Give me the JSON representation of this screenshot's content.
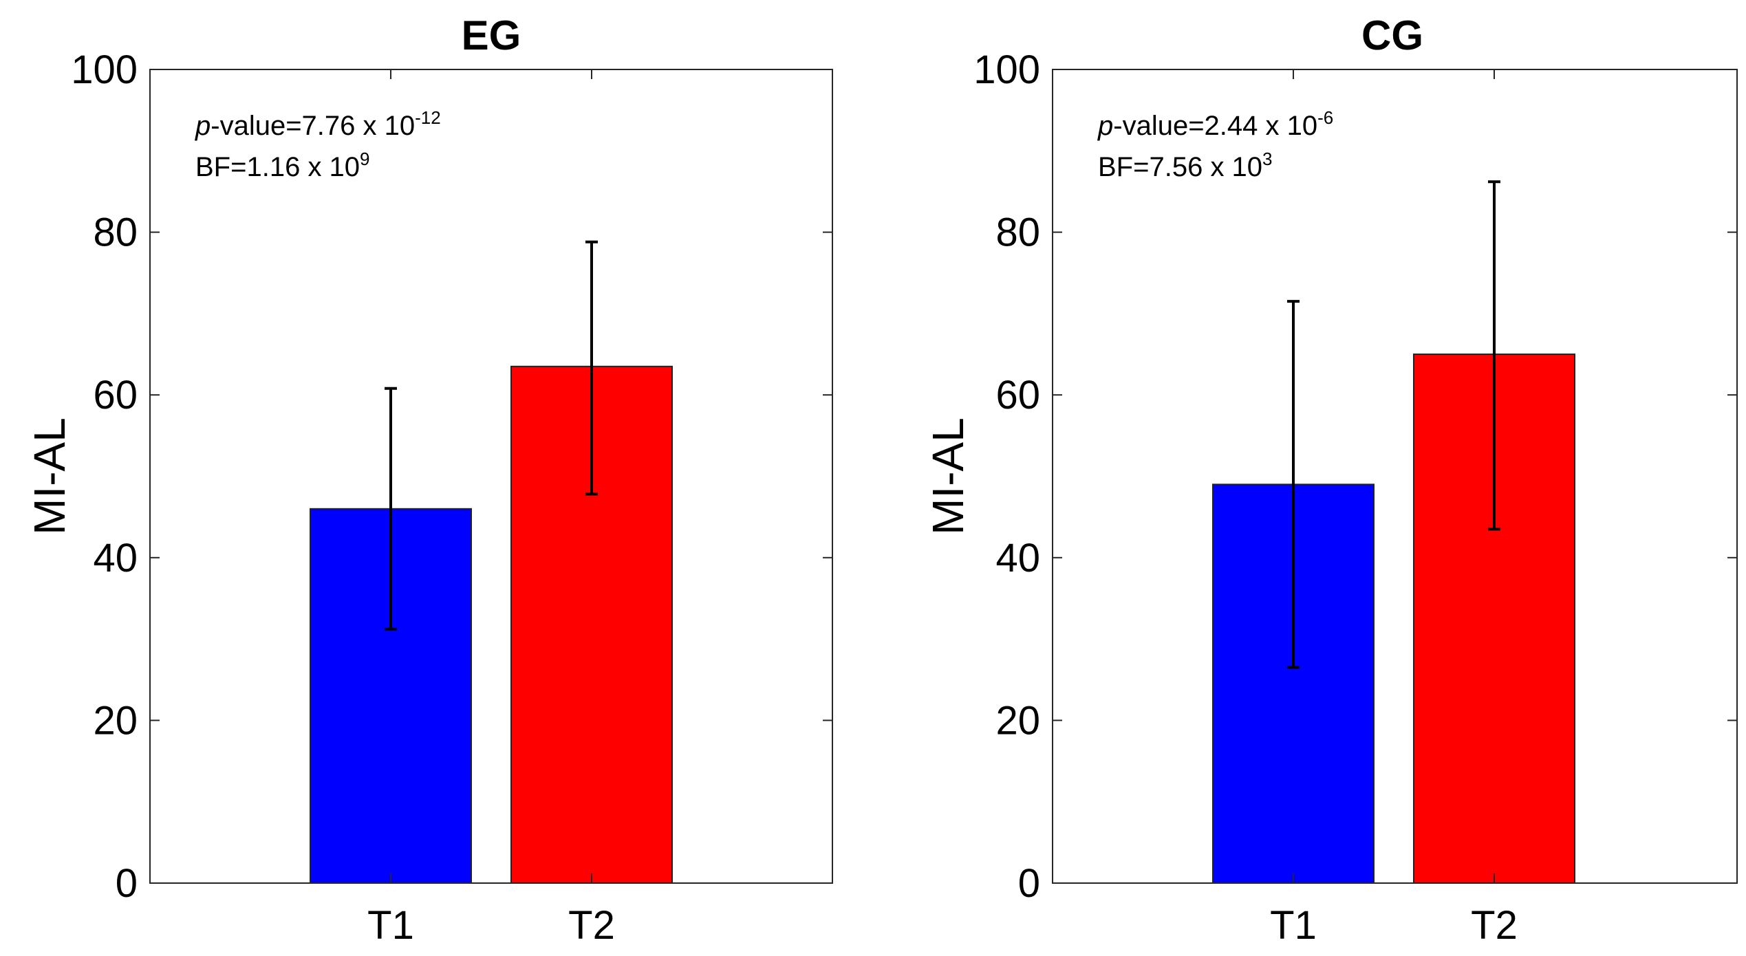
{
  "chart_data": [
    {
      "type": "bar",
      "title": "EG",
      "categories": [
        "T1",
        "T2"
      ],
      "values": [
        46,
        63.5
      ],
      "errors": [
        [
          31.2,
          60.8
        ],
        [
          47.8,
          78.8
        ]
      ],
      "colors": [
        "#0000ff",
        "#ff0000"
      ],
      "xlabel": "",
      "ylabel": "MI-AL",
      "ylim": [
        0,
        100
      ],
      "yticks": [
        "0",
        "20",
        "40",
        "60",
        "80",
        "100"
      ],
      "annotation": {
        "p_italic": "p",
        "p_text": "-value=7.76  x 10",
        "p_exp": "-12",
        "bf_text": "BF=1.16 x 10",
        "bf_exp": "9"
      }
    },
    {
      "type": "bar",
      "title": "CG",
      "categories": [
        "T1",
        "T2"
      ],
      "values": [
        49,
        65
      ],
      "errors": [
        [
          26.5,
          71.5
        ],
        [
          43.5,
          86.2
        ]
      ],
      "colors": [
        "#0000ff",
        "#ff0000"
      ],
      "xlabel": "",
      "ylabel": "MI-AL",
      "ylim": [
        0,
        100
      ],
      "yticks": [
        "0",
        "20",
        "40",
        "60",
        "80",
        "100"
      ],
      "annotation": {
        "p_italic": "p",
        "p_text": "-value=2.44  x 10",
        "p_exp": "-6",
        "bf_text": "BF=7.56 x 10",
        "bf_exp": "3"
      }
    }
  ]
}
